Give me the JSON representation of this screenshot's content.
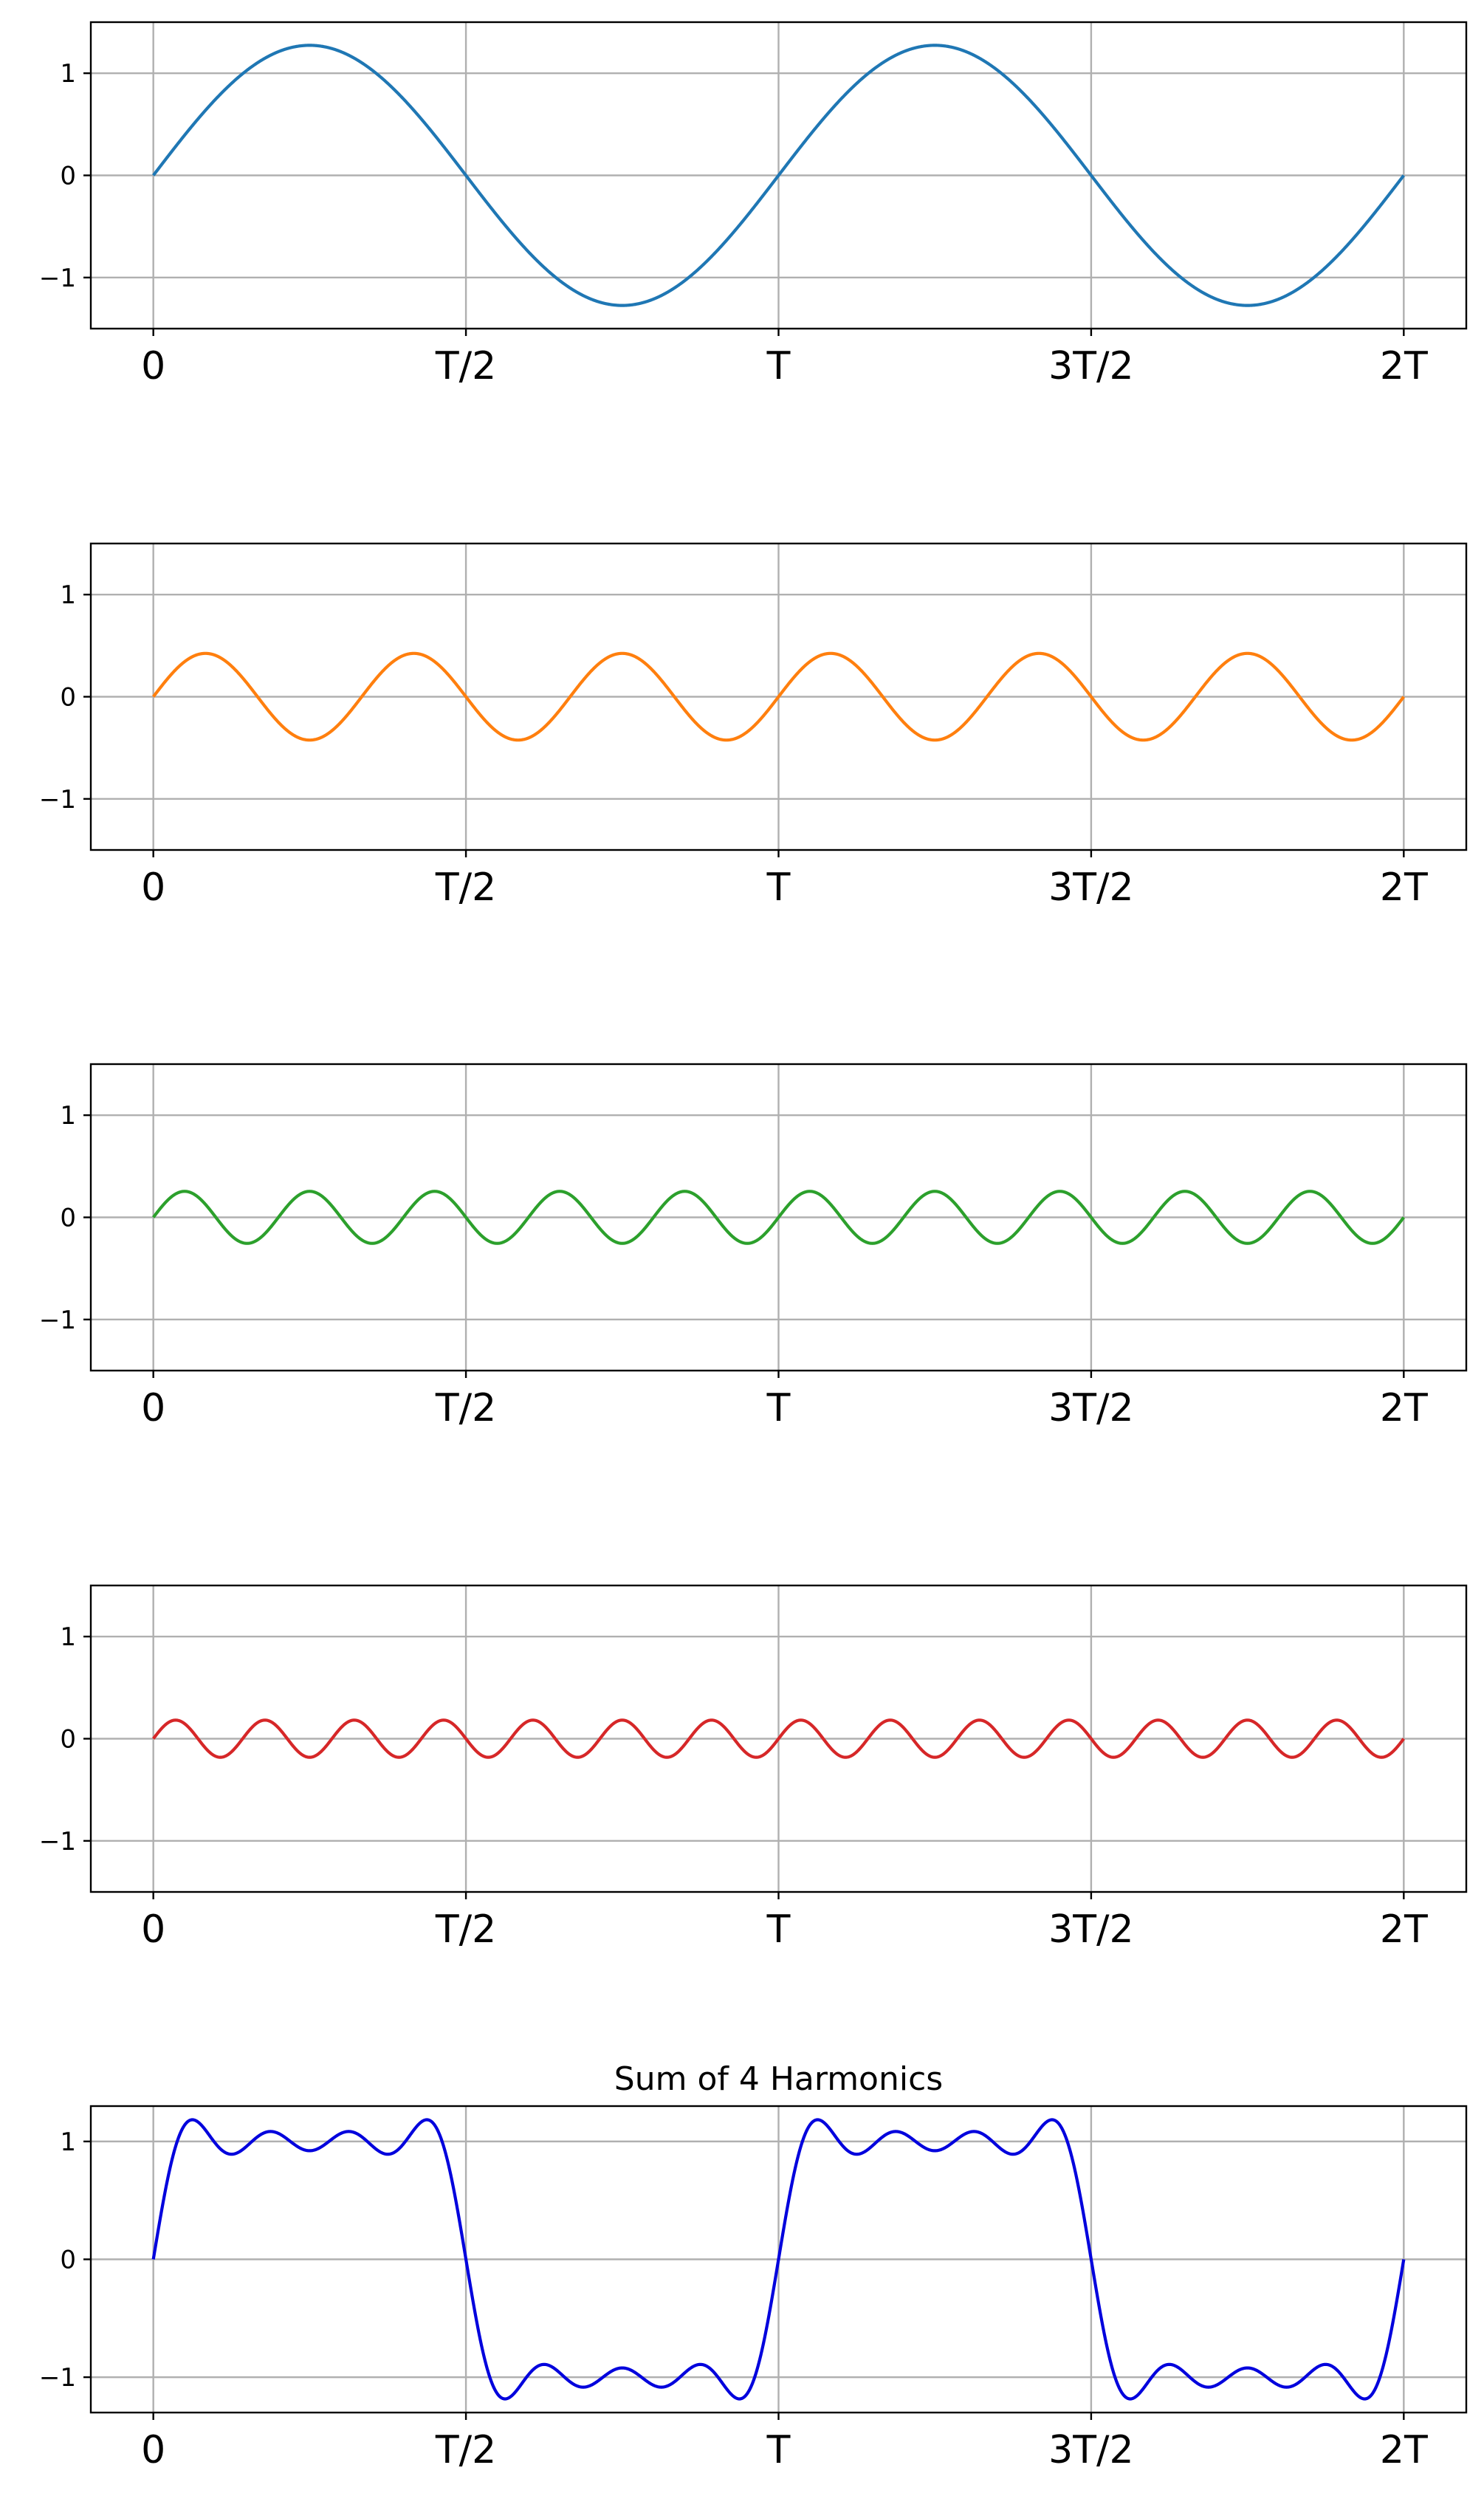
{
  "chart_data": [
    {
      "type": "line",
      "title": "",
      "xlabel": "",
      "ylabel": "",
      "x_period_label": "T",
      "xlim_periods": [
        -0.1,
        2.1
      ],
      "ylim": [
        -1.5,
        1.5
      ],
      "x_ticks": [
        {
          "value_periods": 0,
          "label": "0"
        },
        {
          "value_periods": 0.5,
          "label": "T/2"
        },
        {
          "value_periods": 1,
          "label": "T"
        },
        {
          "value_periods": 1.5,
          "label": "3T/2"
        },
        {
          "value_periods": 2,
          "label": "2T"
        }
      ],
      "y_ticks": [
        {
          "value": 1,
          "label": "1"
        },
        {
          "value": 0,
          "label": "0"
        },
        {
          "value": -1,
          "label": "−1"
        }
      ],
      "grid": true,
      "series": [
        {
          "harmonic": 1,
          "amplitude": 1.2732,
          "color": "#1f77b4"
        }
      ]
    },
    {
      "type": "line",
      "title": "",
      "xlabel": "",
      "ylabel": "",
      "x_period_label": "T",
      "xlim_periods": [
        -0.1,
        2.1
      ],
      "ylim": [
        -1.5,
        1.5
      ],
      "x_ticks": [
        {
          "value_periods": 0,
          "label": "0"
        },
        {
          "value_periods": 0.5,
          "label": "T/2"
        },
        {
          "value_periods": 1,
          "label": "T"
        },
        {
          "value_periods": 1.5,
          "label": "3T/2"
        },
        {
          "value_periods": 2,
          "label": "2T"
        }
      ],
      "y_ticks": [
        {
          "value": 1,
          "label": "1"
        },
        {
          "value": 0,
          "label": "0"
        },
        {
          "value": -1,
          "label": "−1"
        }
      ],
      "grid": true,
      "series": [
        {
          "harmonic": 3,
          "amplitude": 0.4244,
          "color": "#ff7f0e"
        }
      ]
    },
    {
      "type": "line",
      "title": "",
      "xlabel": "",
      "ylabel": "",
      "x_period_label": "T",
      "xlim_periods": [
        -0.1,
        2.1
      ],
      "ylim": [
        -1.5,
        1.5
      ],
      "x_ticks": [
        {
          "value_periods": 0,
          "label": "0"
        },
        {
          "value_periods": 0.5,
          "label": "T/2"
        },
        {
          "value_periods": 1,
          "label": "T"
        },
        {
          "value_periods": 1.5,
          "label": "3T/2"
        },
        {
          "value_periods": 2,
          "label": "2T"
        }
      ],
      "y_ticks": [
        {
          "value": 1,
          "label": "1"
        },
        {
          "value": 0,
          "label": "0"
        },
        {
          "value": -1,
          "label": "−1"
        }
      ],
      "grid": true,
      "series": [
        {
          "harmonic": 5,
          "amplitude": 0.2546,
          "color": "#2ca02c"
        }
      ]
    },
    {
      "type": "line",
      "title": "",
      "xlabel": "",
      "ylabel": "",
      "x_period_label": "T",
      "xlim_periods": [
        -0.1,
        2.1
      ],
      "ylim": [
        -1.5,
        1.5
      ],
      "x_ticks": [
        {
          "value_periods": 0,
          "label": "0"
        },
        {
          "value_periods": 0.5,
          "label": "T/2"
        },
        {
          "value_periods": 1,
          "label": "T"
        },
        {
          "value_periods": 1.5,
          "label": "3T/2"
        },
        {
          "value_periods": 2,
          "label": "2T"
        }
      ],
      "y_ticks": [
        {
          "value": 1,
          "label": "1"
        },
        {
          "value": 0,
          "label": "0"
        },
        {
          "value": -1,
          "label": "−1"
        }
      ],
      "grid": true,
      "series": [
        {
          "harmonic": 7,
          "amplitude": 0.1819,
          "color": "#d62728"
        }
      ]
    },
    {
      "type": "line",
      "title": "Sum of 4 Harmonics",
      "xlabel": "",
      "ylabel": "",
      "x_period_label": "T",
      "xlim_periods": [
        -0.1,
        2.1
      ],
      "ylim": [
        -1.3,
        1.3
      ],
      "x_ticks": [
        {
          "value_periods": 0,
          "label": "0"
        },
        {
          "value_periods": 0.5,
          "label": "T/2"
        },
        {
          "value_periods": 1,
          "label": "T"
        },
        {
          "value_periods": 1.5,
          "label": "3T/2"
        },
        {
          "value_periods": 2,
          "label": "2T"
        }
      ],
      "y_ticks": [
        {
          "value": 1,
          "label": "1"
        },
        {
          "value": 0,
          "label": "0"
        },
        {
          "value": -1,
          "label": "−1"
        }
      ],
      "grid": true,
      "series": [
        {
          "sum_of_harmonics": [
            1,
            3,
            5,
            7
          ],
          "amplitudes": [
            1.2732,
            0.4244,
            0.2546,
            0.1819
          ],
          "color": "#0000dd"
        }
      ]
    }
  ]
}
